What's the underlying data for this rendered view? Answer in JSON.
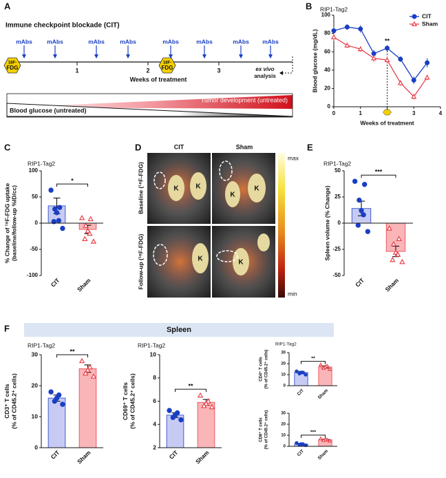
{
  "panel_labels": [
    "A",
    "B",
    "C",
    "D",
    "E",
    "F"
  ],
  "timeline": {
    "title": "Immune checkpoint blockade (CIT)",
    "dose_label": "mAbs",
    "imaging_top": "18F-",
    "imaging_label": "FDG",
    "week_labels": [
      "1",
      "2",
      "3"
    ],
    "axis_label": "Weeks of treatment",
    "end_label": [
      "ex vivo",
      "analysis"
    ],
    "tumor_label": "Tumor development (untreated)",
    "glucose_label": "Blood glucose (untreated)"
  },
  "imaging": {
    "columns": [
      "CIT",
      "Sham"
    ],
    "rows": [
      "Baseline (¹⁸F-FDG)",
      "Follow-up (¹⁸F-FDG)"
    ],
    "organ_label": "K",
    "scale_max": "max",
    "scale_min": "min"
  },
  "spleen_header": "Spleen",
  "chart_data": [
    {
      "type": "line",
      "title": "RIP1-Tag2",
      "x": [
        0,
        0.5,
        1,
        1.5,
        2,
        2.5,
        3,
        3.5
      ],
      "series": [
        {
          "name": "CIT",
          "color": "#1a3fc4",
          "marker": "circle",
          "values": [
            83,
            87,
            85,
            58,
            64,
            52,
            29,
            48
          ],
          "errors": [
            4,
            3,
            4,
            4,
            3,
            3,
            4,
            5
          ]
        },
        {
          "name": "Sham",
          "color": "#e8404a",
          "marker": "triangle",
          "values": [
            76,
            67,
            63,
            53,
            51,
            26,
            11,
            32
          ],
          "errors": [
            4,
            3,
            3,
            4,
            4,
            3,
            3,
            3
          ]
        }
      ],
      "xlim": [
        0,
        4
      ],
      "xticks": [
        0,
        1,
        2,
        3,
        4
      ],
      "ylim": [
        0,
        100
      ],
      "yticks": [
        0,
        20,
        40,
        60,
        80,
        100
      ],
      "xlabel": "Weeks of treatment",
      "ylabel": "Blood glucose (mg/dL)",
      "annotation": {
        "x": 2,
        "text": "**"
      },
      "legend": "upper right"
    },
    {
      "type": "dotbar",
      "title": "RIP1-Tag2",
      "categories": [
        "CIT",
        "Sham"
      ],
      "values": [
        33,
        -12
      ],
      "errors": [
        15,
        8
      ],
      "points": [
        [
          63,
          30,
          27,
          20,
          5,
          3,
          -10
        ],
        [
          10,
          8,
          -5,
          -15,
          -20,
          -30,
          -35
        ]
      ],
      "colors": [
        "#1a3fc4",
        "#e8404a"
      ],
      "fills": [
        "#c7cbf4",
        "#f9b5b7"
      ],
      "markers": [
        "circle",
        "triangle"
      ],
      "ylim": [
        -100,
        100
      ],
      "yticks": [
        -100,
        -50,
        0,
        50,
        100
      ],
      "ylabel": [
        "% Change of ¹⁸F-FDG uptake",
        "(baseline/follow-up %ID/cc)"
      ],
      "significance": "*"
    },
    {
      "type": "dotbar",
      "title": "RIP1-Tag2",
      "categories": [
        "CIT",
        "Sham"
      ],
      "values": [
        14,
        -27
      ],
      "errors": [
        7,
        5
      ],
      "points": [
        [
          40,
          37,
          22,
          12,
          8,
          -2,
          -8
        ],
        [
          -5,
          -15,
          -20,
          -28,
          -30,
          -35,
          -37
        ]
      ],
      "colors": [
        "#1a3fc4",
        "#e8404a"
      ],
      "fills": [
        "#c7cbf4",
        "#f9b5b7"
      ],
      "markers": [
        "circle",
        "triangle"
      ],
      "ylim": [
        -50,
        50
      ],
      "yticks": [
        -50,
        -25,
        0,
        25,
        50
      ],
      "ylabel": [
        "Spleen volume (% Change)"
      ],
      "significance": "***"
    },
    {
      "type": "dotbar",
      "title": "RIP1-Tag2",
      "categories": [
        "CIT",
        "Sham"
      ],
      "values": [
        16,
        25.5
      ],
      "errors": [
        1,
        1.2
      ],
      "points": [
        [
          18,
          17,
          16,
          15,
          14
        ],
        [
          28,
          26,
          25,
          24,
          23
        ]
      ],
      "colors": [
        "#1a3fc4",
        "#e8404a"
      ],
      "fills": [
        "#c7cbf4",
        "#f9b5b7"
      ],
      "markers": [
        "circle",
        "triangle"
      ],
      "ylim": [
        0,
        30
      ],
      "yticks": [
        0,
        10,
        20,
        30
      ],
      "ylabel": [
        "CD3⁺ T cells",
        "(% of CD45.2⁺ cells)"
      ],
      "significance": "**"
    },
    {
      "type": "dotbar",
      "title": "RIP1-Tag2",
      "categories": [
        "CIT",
        "Sham"
      ],
      "values": [
        4.8,
        5.9
      ],
      "errors": [
        0.2,
        0.25
      ],
      "points": [
        [
          5.2,
          5,
          4.8,
          4.6,
          4.4
        ],
        [
          6.5,
          6,
          5.8,
          5.6,
          5.5
        ]
      ],
      "colors": [
        "#1a3fc4",
        "#e8404a"
      ],
      "fills": [
        "#c7cbf4",
        "#f9b5b7"
      ],
      "markers": [
        "circle",
        "triangle"
      ],
      "ylim": [
        2,
        10
      ],
      "yticks": [
        2,
        4,
        6,
        8,
        10
      ],
      "ylabel": [
        "CD69⁺ T cells",
        "(% of CD45.2⁺ cells)"
      ],
      "significance": "**"
    },
    {
      "type": "dotbar",
      "title": "RIP1-Tag2",
      "categories": [
        "CIT",
        "Sham"
      ],
      "values": [
        12,
        17
      ],
      "errors": [
        1,
        1
      ],
      "points": [
        [
          13,
          12,
          12,
          11,
          10
        ],
        [
          19,
          18,
          17,
          16,
          15
        ]
      ],
      "colors": [
        "#1a3fc4",
        "#e8404a"
      ],
      "fills": [
        "#c7cbf4",
        "#f9b5b7"
      ],
      "markers": [
        "circle",
        "triangle"
      ],
      "ylim": [
        0,
        30
      ],
      "yticks": [
        0,
        10,
        20,
        30
      ],
      "ylabel": [
        "CD4⁺ T cells",
        "(% of CD45.2⁺ cells)"
      ],
      "significance": "**"
    },
    {
      "type": "dotbar",
      "categories": [
        "CIT",
        "Sham"
      ],
      "values": [
        2,
        6
      ],
      "errors": [
        0.4,
        0.4
      ],
      "points": [
        [
          3,
          2,
          2,
          1.5,
          1
        ],
        [
          7,
          6,
          6,
          5.5,
          5
        ]
      ],
      "colors": [
        "#1a3fc4",
        "#e8404a"
      ],
      "fills": [
        "#c7cbf4",
        "#f9b5b7"
      ],
      "markers": [
        "circle",
        "triangle"
      ],
      "ylim": [
        0,
        30
      ],
      "yticks": [
        0,
        10,
        20,
        30
      ],
      "ylabel": [
        "CD8⁺ T cells",
        "(% of CD45.2⁺ cells)"
      ],
      "significance": "***"
    }
  ]
}
